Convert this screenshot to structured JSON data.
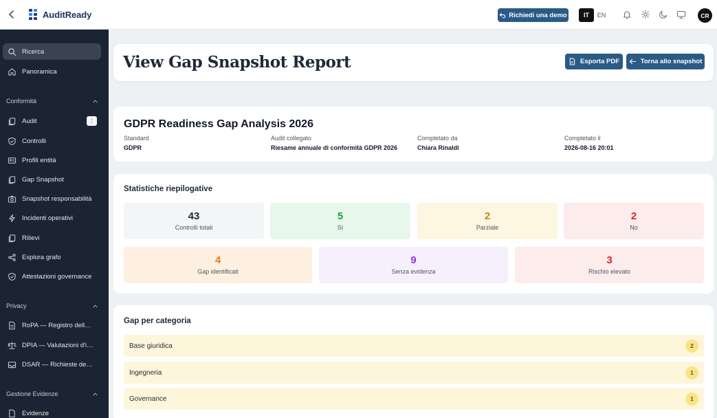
{
  "topbar": {
    "app_name": "AuditReady",
    "demo_label": "Richiedi una demo",
    "lang_active": "IT",
    "lang_other": "EN",
    "avatar_initials": "CR"
  },
  "sidebar": {
    "search": "Ricerca",
    "overview": "Panoramica",
    "sections": [
      {
        "title": "Conformità",
        "items": [
          "Audit",
          "Controlli",
          "Profili entità",
          "Gap Snapshot",
          "Snapshot responsabilità",
          "Incidenti operativi",
          "Rilievi",
          "Esplora grafo",
          "Attestazioni governance"
        ]
      },
      {
        "title": "Privacy",
        "items": [
          "RoPA — Registro delle at...",
          "DPIA — Valutazioni d'im...",
          "DSAR — Richieste dell'in..."
        ]
      },
      {
        "title": "Gestione Evidenze",
        "items": [
          "Evidenze"
        ]
      }
    ]
  },
  "page": {
    "title": "View Gap Snapshot Report",
    "export_label": "Esporta PDF",
    "back_label": "Torna allo snapshot"
  },
  "report": {
    "title": "GDPR Readiness Gap Analysis 2026",
    "meta": [
      {
        "label": "Standard",
        "value": "GDPR"
      },
      {
        "label": "Audit collegato",
        "value": "Riesame annuale di conformità GDPR 2026"
      },
      {
        "label": "Completato da",
        "value": "Chiara Rinaldi"
      },
      {
        "label": "Completato il",
        "value": "2026-08-16 20:01"
      }
    ]
  },
  "stats": {
    "title": "Statistiche riepilogative",
    "row1": [
      {
        "value": "43",
        "label": "Controlli totali",
        "color": "#1f2937",
        "bg": "#f3f5f7"
      },
      {
        "value": "5",
        "label": "Sì",
        "color": "#16a34a",
        "bg": "#e8f7ec"
      },
      {
        "value": "2",
        "label": "Parziale",
        "color": "#c2861a",
        "bg": "#fdf6e0"
      },
      {
        "value": "2",
        "label": "No",
        "color": "#dc2626",
        "bg": "#fdecec"
      }
    ],
    "row2": [
      {
        "value": "4",
        "label": "Gap identificati",
        "color": "#ea7a17",
        "bg": "#fdf0e1"
      },
      {
        "value": "9",
        "label": "Senza evidenza",
        "color": "#9333ea",
        "bg": "#f6f0fd"
      },
      {
        "value": "3",
        "label": "Rischio elevato",
        "color": "#dc2626",
        "bg": "#fdecec"
      }
    ]
  },
  "categories": {
    "title": "Gap per categoria",
    "items": [
      {
        "name": "Base giuridica",
        "count": "2"
      },
      {
        "name": "Ingegneria",
        "count": "1"
      },
      {
        "name": "Governance",
        "count": "1"
      }
    ]
  }
}
